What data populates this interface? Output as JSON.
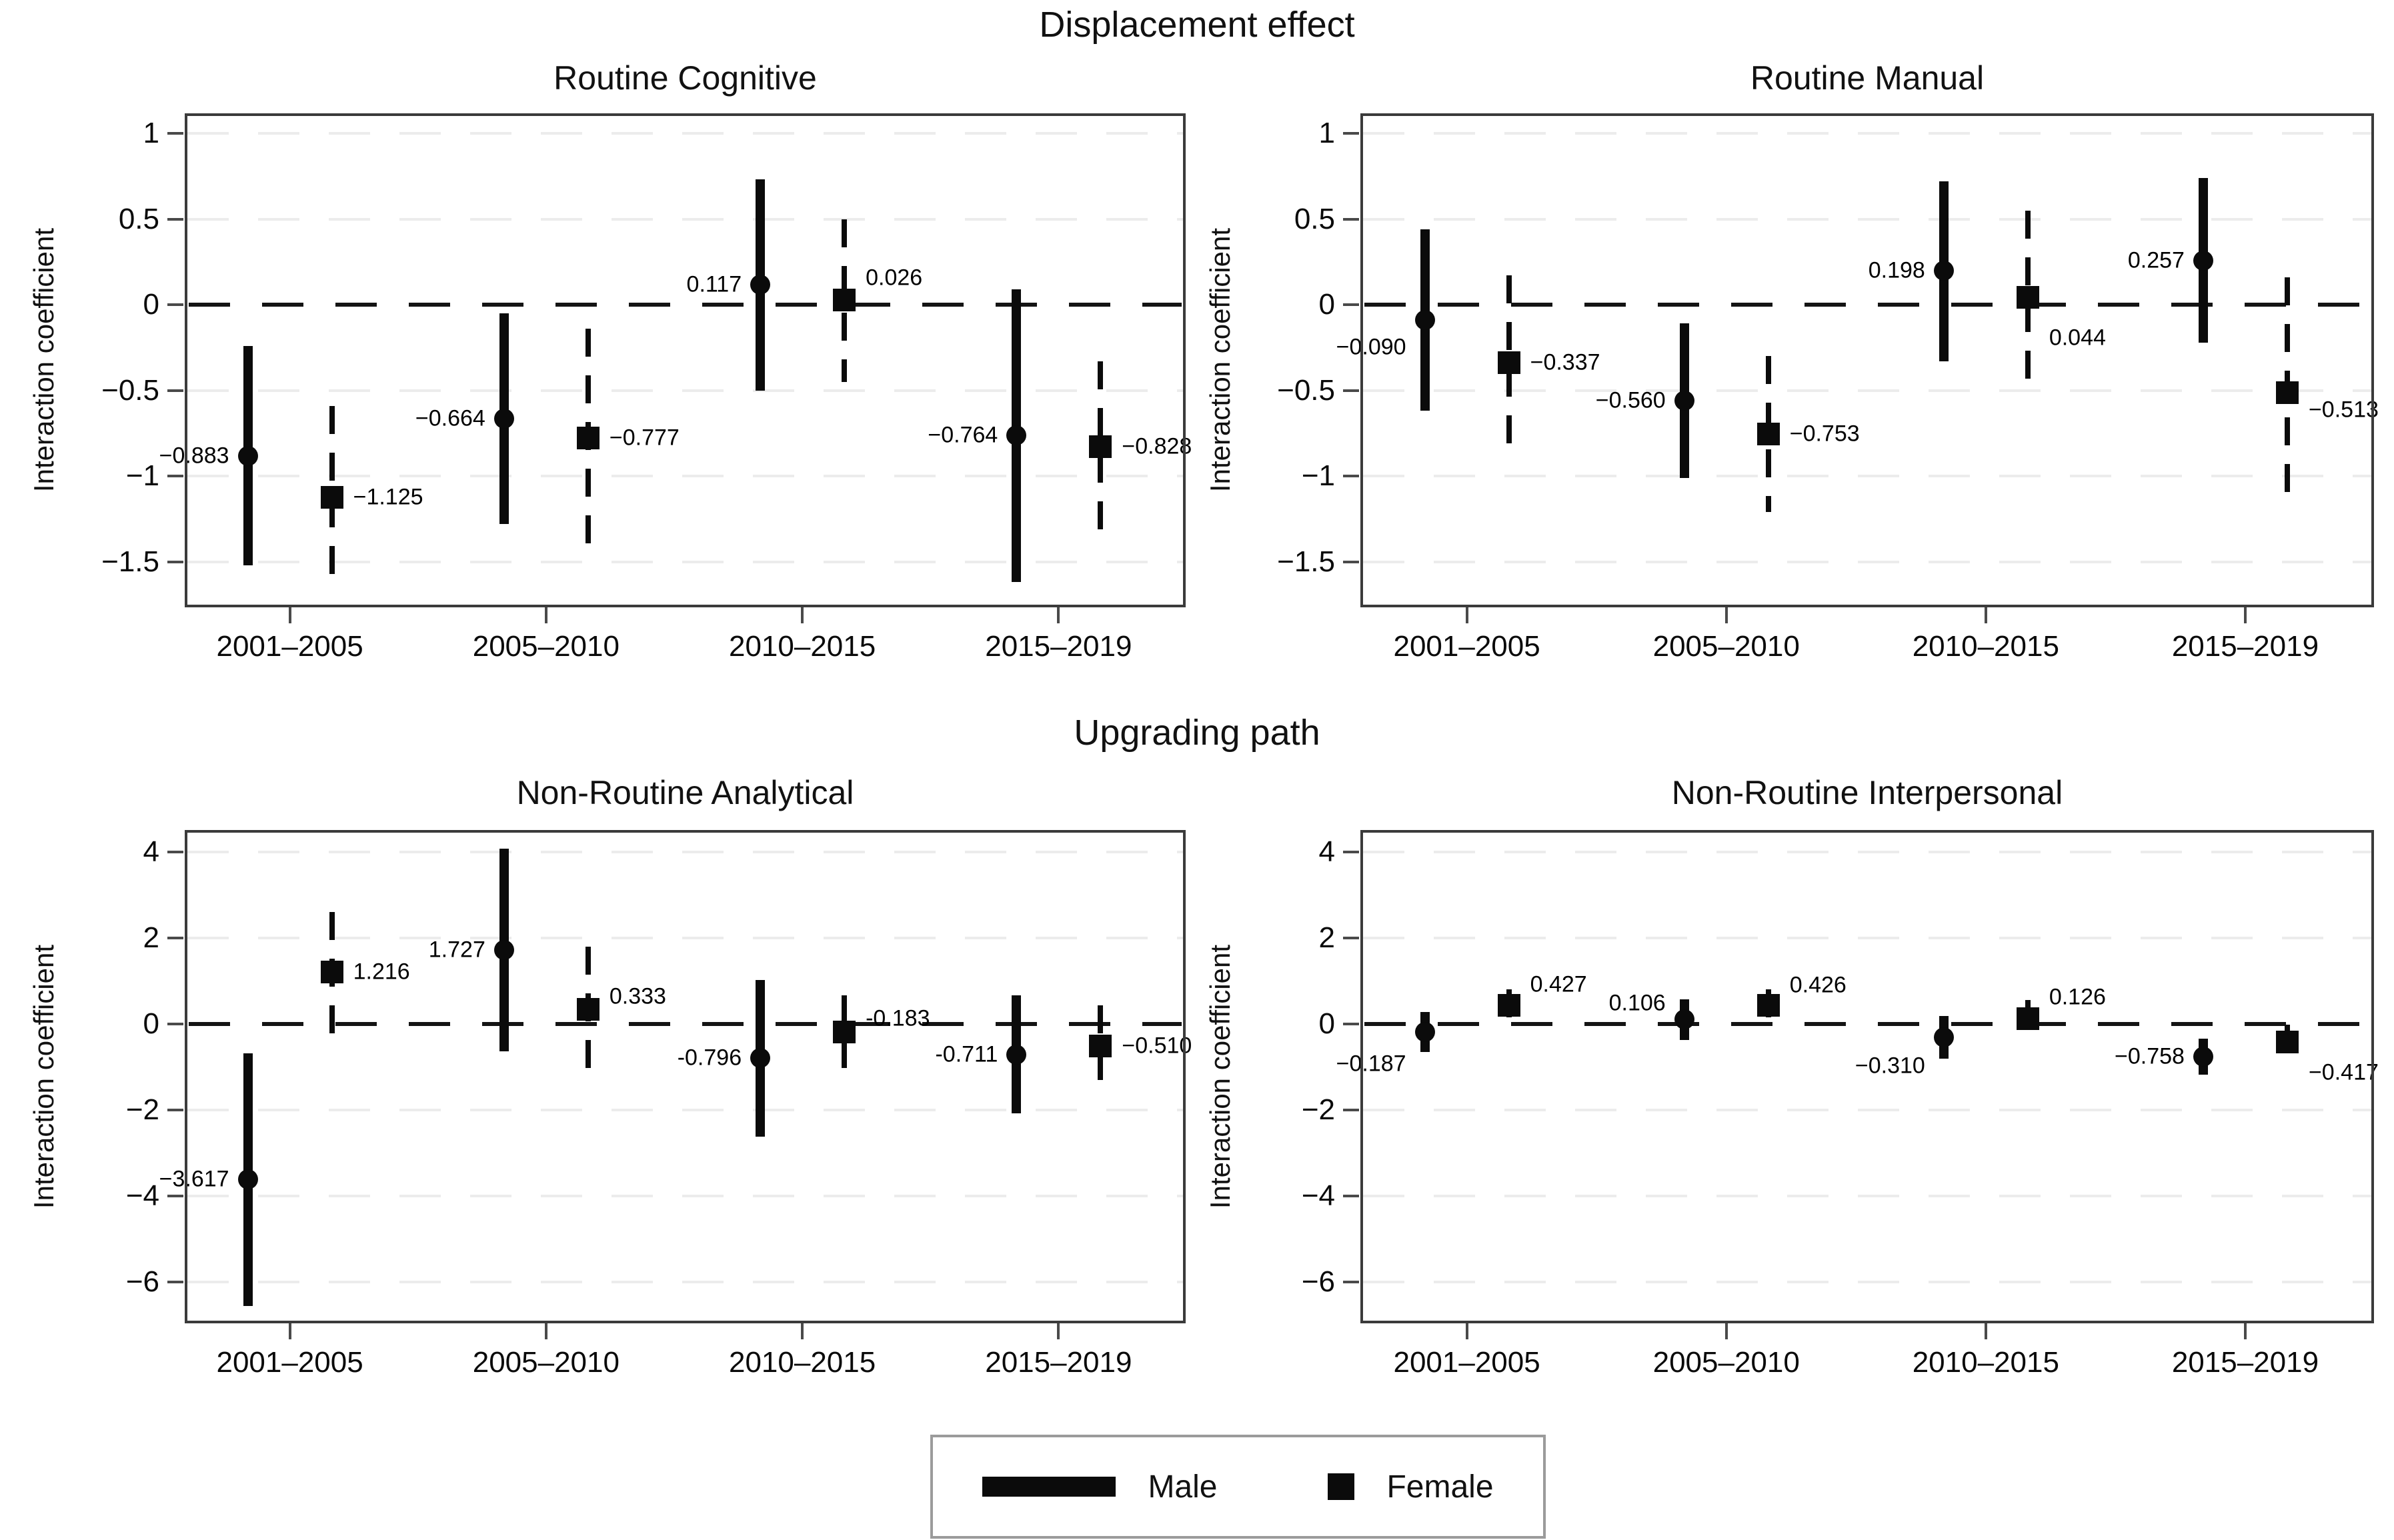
{
  "figure": {
    "row_titles": [
      "Displacement effect",
      "Upgrading path"
    ],
    "ylabel": "Interaction coefficient",
    "categories": [
      "2001–2005",
      "2005–2010",
      "2010–2015",
      "2015–2019"
    ],
    "colors": {
      "ink": "#0b0b0b",
      "frame": "#3b3b3b",
      "grid": "#ececec",
      "legend_border": "#9b9b9b"
    },
    "legend": {
      "items": [
        {
          "label": "Male",
          "marker": "thick-line"
        },
        {
          "label": "Female",
          "marker": "square"
        }
      ]
    }
  },
  "chart_data": [
    {
      "type": "scatter",
      "title": "Routine Cognitive",
      "group": "Displacement effect",
      "row": 0,
      "col": 0,
      "ylabel": "Interaction coefficient",
      "categories": [
        "2001–2005",
        "2005–2010",
        "2010–2015",
        "2015–2019"
      ],
      "ylim": [
        -1.766,
        1.117
      ],
      "zero_line": true,
      "yticks": [
        {
          "v": 1,
          "label": "1"
        },
        {
          "v": 0.5,
          "label": "0.5"
        },
        {
          "v": 0,
          "label": "0"
        },
        {
          "v": -0.5,
          "label": "−0.5"
        },
        {
          "v": -1,
          "label": "−1"
        },
        {
          "v": -1.5,
          "label": "−1.5"
        }
      ],
      "series": [
        {
          "name": "Male",
          "marker": "circle",
          "ci_style": "solid",
          "points": [
            {
              "category": "2001–2005",
              "value": -0.883,
              "label": "−0.883",
              "ci": [
                -1.52,
                -0.24
              ],
              "side": "left",
              "dy": 0
            },
            {
              "category": "2005–2010",
              "value": -0.664,
              "label": "−0.664",
              "ci": [
                -1.28,
                -0.05
              ],
              "side": "left",
              "dy": 0
            },
            {
              "category": "2010–2015",
              "value": 0.117,
              "label": "0.117",
              "ci": [
                -0.5,
                0.73
              ],
              "side": "left",
              "dy": 0
            },
            {
              "category": "2015–2019",
              "value": -0.764,
              "label": "−0.764",
              "ci": [
                -1.62,
                0.09
              ],
              "side": "left",
              "dy": 0
            }
          ]
        },
        {
          "name": "Female",
          "marker": "square",
          "ci_style": "dashed",
          "points": [
            {
              "category": "2001–2005",
              "value": -1.125,
              "label": "−1.125",
              "ci": [
                -1.66,
                -0.59
              ],
              "side": "right",
              "dy": 0
            },
            {
              "category": "2005–2010",
              "value": -0.777,
              "label": "−0.777",
              "ci": [
                -1.41,
                -0.14
              ],
              "side": "right",
              "dy": 0
            },
            {
              "category": "2010–2015",
              "value": 0.026,
              "label": "0.026",
              "ci": [
                -0.45,
                0.5
              ],
              "side": "right",
              "dy": 0.13
            },
            {
              "category": "2015–2019",
              "value": -0.828,
              "label": "−0.828",
              "ci": [
                -1.33,
                -0.33
              ],
              "side": "right",
              "dy": 0
            }
          ]
        }
      ]
    },
    {
      "type": "scatter",
      "title": "Routine Manual",
      "group": "Displacement effect",
      "row": 0,
      "col": 1,
      "ylabel": "Interaction coefficient",
      "categories": [
        "2001–2005",
        "2005–2010",
        "2010–2015",
        "2015–2019"
      ],
      "ylim": [
        -1.766,
        1.117
      ],
      "zero_line": true,
      "yticks": [
        {
          "v": 1,
          "label": "1"
        },
        {
          "v": 0.5,
          "label": "0.5"
        },
        {
          "v": 0,
          "label": "0"
        },
        {
          "v": -0.5,
          "label": "−0.5"
        },
        {
          "v": -1,
          "label": "−1"
        },
        {
          "v": -1.5,
          "label": "−1.5"
        }
      ],
      "series": [
        {
          "name": "Male",
          "marker": "circle",
          "ci_style": "solid",
          "points": [
            {
              "category": "2001–2005",
              "value": -0.09,
              "label": "−0.090",
              "ci": [
                -0.62,
                0.44
              ],
              "side": "left",
              "dy": -0.16
            },
            {
              "category": "2005–2010",
              "value": -0.56,
              "label": "−0.560",
              "ci": [
                -1.01,
                -0.11
              ],
              "side": "left",
              "dy": 0
            },
            {
              "category": "2010–2015",
              "value": 0.198,
              "label": "0.198",
              "ci": [
                -0.33,
                0.72
              ],
              "side": "left",
              "dy": 0
            },
            {
              "category": "2015–2019",
              "value": 0.257,
              "label": "0.257",
              "ci": [
                -0.22,
                0.74
              ],
              "side": "left",
              "dy": 0
            }
          ]
        },
        {
          "name": "Female",
          "marker": "square",
          "ci_style": "dashed",
          "points": [
            {
              "category": "2001–2005",
              "value": -0.337,
              "label": "−0.337",
              "ci": [
                -0.85,
                0.17
              ],
              "side": "right",
              "dy": 0
            },
            {
              "category": "2005–2010",
              "value": -0.753,
              "label": "−0.753",
              "ci": [
                -1.21,
                -0.3
              ],
              "side": "right",
              "dy": 0
            },
            {
              "category": "2010–2015",
              "value": 0.044,
              "label": "0.044",
              "ci": [
                -0.49,
                0.55
              ],
              "side": "right",
              "dy": -0.24
            },
            {
              "category": "2015–2019",
              "value": -0.513,
              "label": "−0.513",
              "ci": [
                -1.18,
                0.16
              ],
              "side": "right",
              "dy": -0.1
            }
          ]
        }
      ]
    },
    {
      "type": "scatter",
      "title": "Non-Routine Analytical",
      "group": "Upgrading path",
      "row": 1,
      "col": 0,
      "ylabel": "Interaction coefficient",
      "categories": [
        "2001–2005",
        "2005–2010",
        "2010–2015",
        "2015–2019"
      ],
      "ylim": [
        -6.96,
        4.51
      ],
      "zero_line": true,
      "yticks": [
        {
          "v": 4,
          "label": "4"
        },
        {
          "v": 2,
          "label": "2"
        },
        {
          "v": 0,
          "label": "0"
        },
        {
          "v": -2,
          "label": "−2"
        },
        {
          "v": -4,
          "label": "−4"
        },
        {
          "v": -6,
          "label": "−6"
        }
      ],
      "series": [
        {
          "name": "Male",
          "marker": "circle",
          "ci_style": "solid",
          "points": [
            {
              "category": "2001–2005",
              "value": -3.617,
              "label": "−3.617",
              "ci": [
                -6.55,
                -0.68
              ],
              "side": "left",
              "dy": 0
            },
            {
              "category": "2005–2010",
              "value": 1.727,
              "label": "1.727",
              "ci": [
                -0.63,
                4.08
              ],
              "side": "left",
              "dy": 0
            },
            {
              "category": "2010–2015",
              "value": -0.796,
              "label": "-0.796",
              "ci": [
                -2.62,
                1.02
              ],
              "side": "left",
              "dy": 0
            },
            {
              "category": "2015–2019",
              "value": -0.711,
              "label": "-0.711",
              "ci": [
                -2.08,
                0.66
              ],
              "side": "left",
              "dy": 0
            }
          ]
        },
        {
          "name": "Female",
          "marker": "square",
          "ci_style": "dashed",
          "points": [
            {
              "category": "2001–2005",
              "value": 1.216,
              "label": "1.216",
              "ci": [
                -0.4,
                2.6
              ],
              "side": "right",
              "dy": 0
            },
            {
              "category": "2005–2010",
              "value": 0.333,
              "label": "0.333",
              "ci": [
                -1.12,
                1.79
              ],
              "side": "right",
              "dy": 0.3
            },
            {
              "category": "2010–2015",
              "value": -0.183,
              "label": "-0.183",
              "ci": [
                -1.03,
                0.66
              ],
              "side": "right",
              "dy": 0.3
            },
            {
              "category": "2015–2019",
              "value": -0.51,
              "label": "−0.510",
              "ci": [
                -1.45,
                0.43
              ],
              "side": "right",
              "dy": 0
            }
          ]
        }
      ]
    },
    {
      "type": "scatter",
      "title": "Non-Routine Interpersonal",
      "group": "Upgrading path",
      "row": 1,
      "col": 1,
      "ylabel": "Interaction coefficient",
      "categories": [
        "2001–2005",
        "2005–2010",
        "2010–2015",
        "2015–2019"
      ],
      "ylim": [
        -6.96,
        4.51
      ],
      "zero_line": true,
      "yticks": [
        {
          "v": 4,
          "label": "4"
        },
        {
          "v": 2,
          "label": "2"
        },
        {
          "v": 0,
          "label": "0"
        },
        {
          "v": -2,
          "label": "−2"
        },
        {
          "v": -4,
          "label": "−4"
        },
        {
          "v": -6,
          "label": "−6"
        }
      ],
      "series": [
        {
          "name": "Male",
          "marker": "circle",
          "ci_style": "solid",
          "points": [
            {
              "category": "2001–2005",
              "value": -0.187,
              "label": "−0.187",
              "ci": [
                -0.65,
                0.28
              ],
              "side": "left",
              "dy": -0.75
            },
            {
              "category": "2005–2010",
              "value": 0.106,
              "label": "0.106",
              "ci": [
                -0.37,
                0.58
              ],
              "side": "left",
              "dy": 0.38
            },
            {
              "category": "2010–2015",
              "value": -0.31,
              "label": "−0.310",
              "ci": [
                -0.8,
                0.18
              ],
              "side": "left",
              "dy": -0.67
            },
            {
              "category": "2015–2019",
              "value": -0.758,
              "label": "−0.758",
              "ci": [
                -1.18,
                -0.34
              ],
              "side": "left",
              "dy": 0
            }
          ]
        },
        {
          "name": "Female",
          "marker": "square",
          "ci_style": "dashed",
          "points": [
            {
              "category": "2001–2005",
              "value": 0.427,
              "label": "0.427",
              "ci": [
                0.04,
                0.81
              ],
              "side": "right",
              "dy": 0.48
            },
            {
              "category": "2005–2010",
              "value": 0.426,
              "label": "0.426",
              "ci": [
                0.05,
                0.8
              ],
              "side": "right",
              "dy": 0.48
            },
            {
              "category": "2010–2015",
              "value": 0.126,
              "label": "0.126",
              "ci": [
                -0.3,
                0.55
              ],
              "side": "right",
              "dy": 0.5
            },
            {
              "category": "2015–2019",
              "value": -0.417,
              "label": "−0.417",
              "ci": [
                -0.83,
                -0.02
              ],
              "side": "right",
              "dy": -0.72
            }
          ]
        }
      ]
    }
  ]
}
